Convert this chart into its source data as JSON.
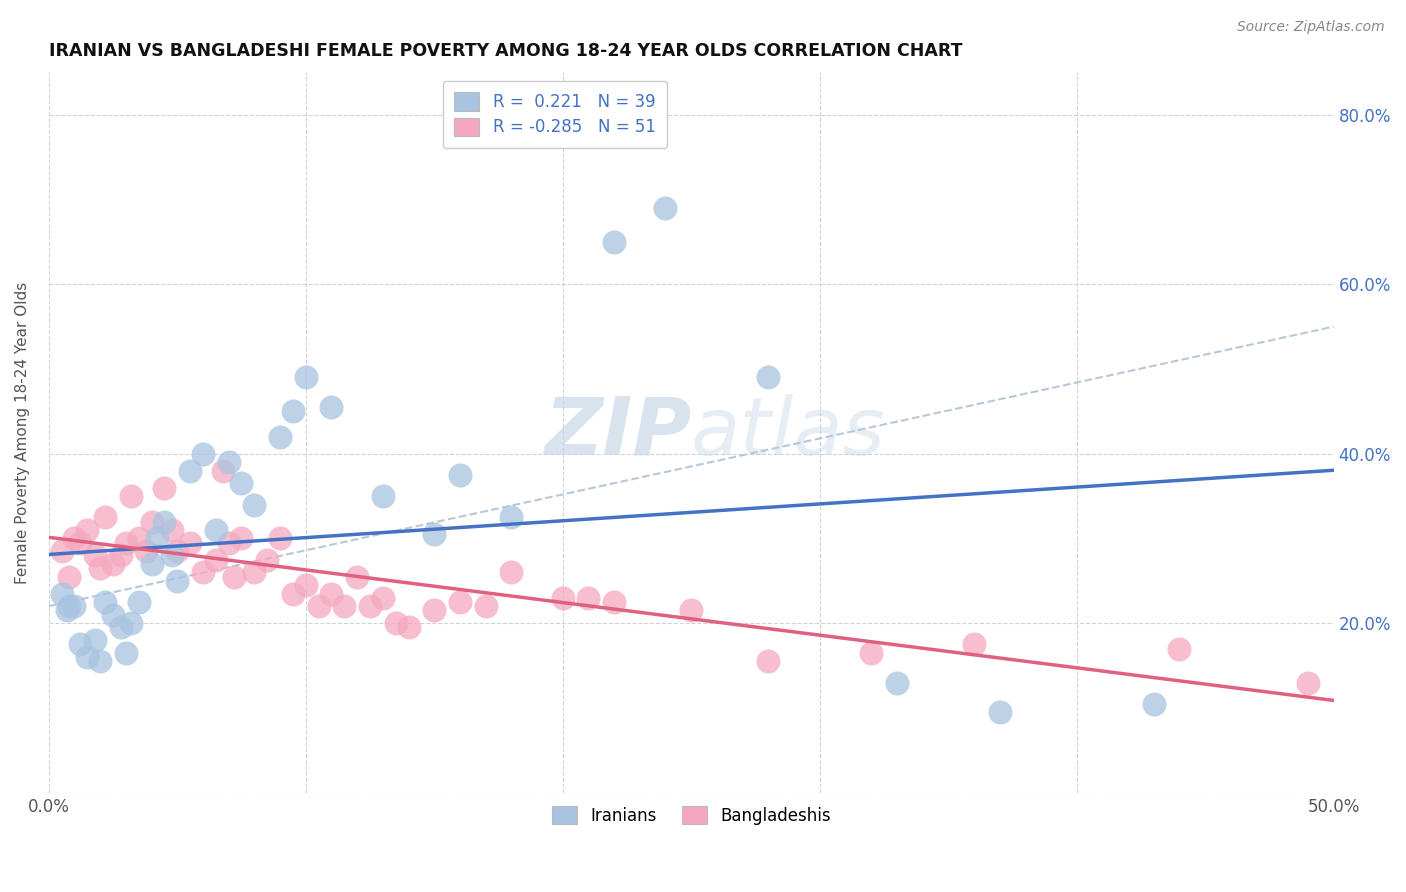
{
  "title": "IRANIAN VS BANGLADESHI FEMALE POVERTY AMONG 18-24 YEAR OLDS CORRELATION CHART",
  "source": "Source: ZipAtlas.com",
  "ylabel": "Female Poverty Among 18-24 Year Olds",
  "xlim": [
    0.0,
    0.5
  ],
  "ylim": [
    0.0,
    0.85
  ],
  "legend_R_iranian": "0.221",
  "legend_N_iranian": "39",
  "legend_R_bangladeshi": "-0.285",
  "legend_N_bangladeshi": "51",
  "iranian_color": "#a8c4e0",
  "bangladeshi_color": "#f4a8c0",
  "iranian_line_color": "#4472c4",
  "bangladeshi_line_color": "#e06080",
  "watermark_color": "#c8d8e8",
  "iranian_x": [
    0.005,
    0.007,
    0.008,
    0.01,
    0.012,
    0.015,
    0.018,
    0.02,
    0.022,
    0.025,
    0.028,
    0.03,
    0.032,
    0.035,
    0.04,
    0.042,
    0.045,
    0.048,
    0.05,
    0.055,
    0.06,
    0.065,
    0.07,
    0.075,
    0.08,
    0.09,
    0.095,
    0.1,
    0.11,
    0.13,
    0.15,
    0.16,
    0.18,
    0.22,
    0.24,
    0.28,
    0.33,
    0.37,
    0.43
  ],
  "iranian_y": [
    0.235,
    0.215,
    0.22,
    0.22,
    0.175,
    0.16,
    0.18,
    0.155,
    0.225,
    0.21,
    0.195,
    0.165,
    0.2,
    0.225,
    0.27,
    0.3,
    0.32,
    0.28,
    0.25,
    0.38,
    0.4,
    0.31,
    0.39,
    0.365,
    0.34,
    0.42,
    0.45,
    0.49,
    0.455,
    0.35,
    0.305,
    0.375,
    0.325,
    0.65,
    0.69,
    0.49,
    0.13,
    0.095,
    0.105
  ],
  "bangladeshi_x": [
    0.005,
    0.008,
    0.01,
    0.012,
    0.015,
    0.018,
    0.02,
    0.022,
    0.025,
    0.028,
    0.03,
    0.032,
    0.035,
    0.038,
    0.04,
    0.045,
    0.048,
    0.05,
    0.055,
    0.06,
    0.065,
    0.068,
    0.07,
    0.072,
    0.075,
    0.08,
    0.085,
    0.09,
    0.095,
    0.1,
    0.105,
    0.11,
    0.115,
    0.12,
    0.125,
    0.13,
    0.135,
    0.14,
    0.15,
    0.16,
    0.17,
    0.18,
    0.2,
    0.21,
    0.22,
    0.25,
    0.28,
    0.32,
    0.36,
    0.44,
    0.49
  ],
  "bangladeshi_y": [
    0.285,
    0.255,
    0.3,
    0.295,
    0.31,
    0.28,
    0.265,
    0.325,
    0.27,
    0.28,
    0.295,
    0.35,
    0.3,
    0.285,
    0.32,
    0.36,
    0.31,
    0.285,
    0.295,
    0.26,
    0.275,
    0.38,
    0.295,
    0.255,
    0.3,
    0.26,
    0.275,
    0.3,
    0.235,
    0.245,
    0.22,
    0.235,
    0.22,
    0.255,
    0.22,
    0.23,
    0.2,
    0.195,
    0.215,
    0.225,
    0.22,
    0.26,
    0.23,
    0.23,
    0.225,
    0.215,
    0.155,
    0.165,
    0.175,
    0.17,
    0.13
  ]
}
